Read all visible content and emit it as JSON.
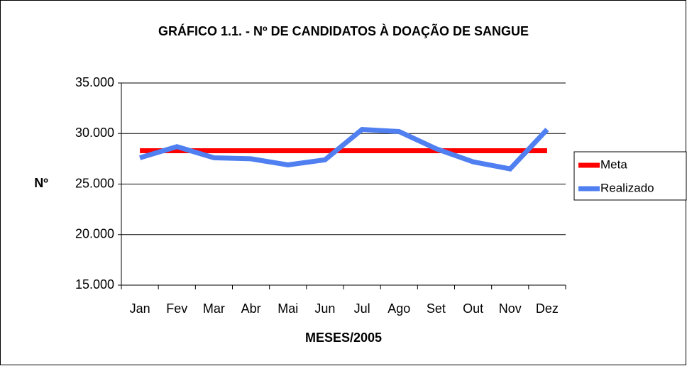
{
  "chart_data": {
    "type": "line",
    "title": "GRÁFICO 1.1. - Nº DE CANDIDATOS À DOAÇÃO DE SANGUE",
    "y_label": "Nº",
    "x_label": "MESES/2005",
    "categories": [
      "Jan",
      "Fev",
      "Mar",
      "Abr",
      "Mai",
      "Jun",
      "Jul",
      "Ago",
      "Set",
      "Out",
      "Nov",
      "Dez"
    ],
    "series": [
      {
        "name": "Meta",
        "color": "#ff0000",
        "values": [
          28300,
          28300,
          28300,
          28300,
          28300,
          28300,
          28300,
          28300,
          28300,
          28300,
          28300,
          28300
        ]
      },
      {
        "name": "Realizado",
        "color": "#4f7ff0",
        "values": [
          27600,
          28700,
          27600,
          27500,
          26900,
          27400,
          30400,
          30200,
          28500,
          27200,
          26500,
          30400
        ]
      }
    ],
    "ylim": [
      15000,
      35000
    ],
    "yticks": [
      {
        "value": 15000,
        "label": "15.000"
      },
      {
        "value": 20000,
        "label": "20.000"
      },
      {
        "value": 25000,
        "label": "25.000"
      },
      {
        "value": 30000,
        "label": "30.000"
      },
      {
        "value": 35000,
        "label": "35.000"
      }
    ],
    "grid": true,
    "legend": "right"
  }
}
